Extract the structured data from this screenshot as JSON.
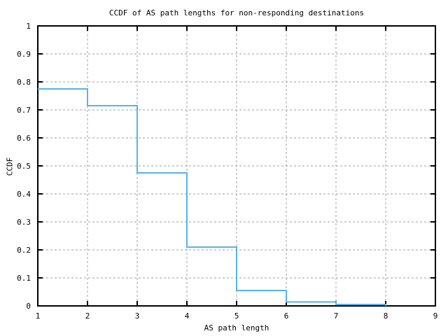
{
  "page": {
    "background_color": "#ffffff",
    "text_color": "#000000"
  },
  "chart_data": {
    "type": "line",
    "subtype": "step-ccdf",
    "title": "CCDF of AS path lengths for non-responding destinations",
    "xlabel": "AS path length",
    "ylabel": "CCDF",
    "xlim": [
      1,
      9
    ],
    "ylim": [
      0,
      1
    ],
    "grid": true,
    "grid_style": "dashed",
    "legend": "none",
    "line_color": "#56b4e9",
    "grid_color": "#a0a0a0",
    "axis_color": "#000000",
    "xticks": [
      {
        "v": 1,
        "label": "1"
      },
      {
        "v": 2,
        "label": "2"
      },
      {
        "v": 3,
        "label": "3"
      },
      {
        "v": 4,
        "label": "4"
      },
      {
        "v": 5,
        "label": "5"
      },
      {
        "v": 6,
        "label": "6"
      },
      {
        "v": 7,
        "label": "7"
      },
      {
        "v": 8,
        "label": "8"
      },
      {
        "v": 9,
        "label": "9"
      }
    ],
    "yticks": [
      {
        "v": 0.0,
        "label": "0"
      },
      {
        "v": 0.1,
        "label": "0.1"
      },
      {
        "v": 0.2,
        "label": "0.2"
      },
      {
        "v": 0.3,
        "label": "0.3"
      },
      {
        "v": 0.4,
        "label": "0.4"
      },
      {
        "v": 0.5,
        "label": "0.5"
      },
      {
        "v": 0.6,
        "label": "0.6"
      },
      {
        "v": 0.7,
        "label": "0.7"
      },
      {
        "v": 0.8,
        "label": "0.8"
      },
      {
        "v": 0.9,
        "label": "0.9"
      },
      {
        "v": 1.0,
        "label": "1"
      }
    ],
    "series": [
      {
        "name": "ccdf-as-path-length",
        "steps": [
          {
            "x_start": 1,
            "x_end": 2,
            "y": 0.775
          },
          {
            "x_start": 2,
            "x_end": 3,
            "y": 0.715
          },
          {
            "x_start": 3,
            "x_end": 4,
            "y": 0.475
          },
          {
            "x_start": 4,
            "x_end": 5,
            "y": 0.21
          },
          {
            "x_start": 5,
            "x_end": 6,
            "y": 0.055
          },
          {
            "x_start": 6,
            "x_end": 7,
            "y": 0.014
          },
          {
            "x_start": 7,
            "x_end": 8,
            "y": 0.005
          }
        ],
        "end_drop_to": 0
      }
    ]
  }
}
